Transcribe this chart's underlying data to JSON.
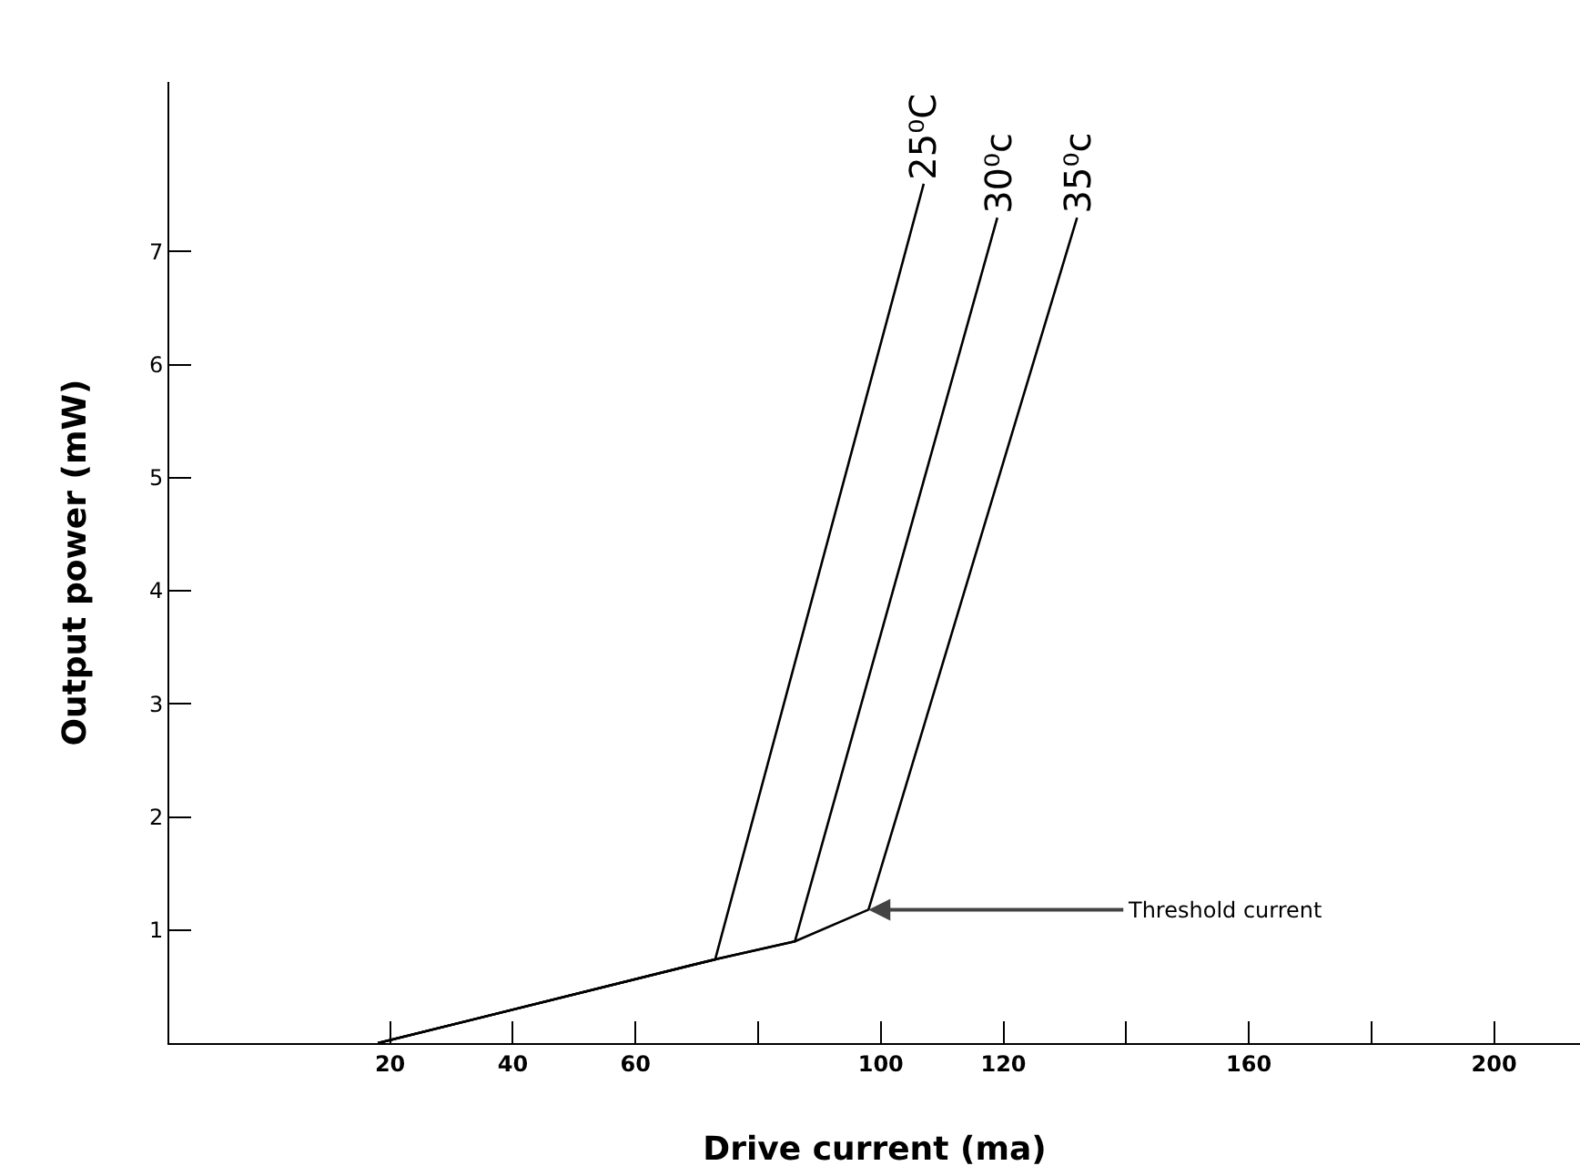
{
  "chart_data": {
    "type": "line",
    "xlabel": "Drive current (ma)",
    "ylabel": "Output power (mW)",
    "series": [
      {
        "name": "25⁰C",
        "color": "#000000",
        "x": [
          18,
          73,
          107
        ],
        "values": [
          0,
          0.74,
          7.6
        ]
      },
      {
        "name": "30⁰c",
        "color": "#000000",
        "x": [
          18,
          73,
          86,
          119
        ],
        "values": [
          0,
          0.74,
          0.9,
          7.3
        ]
      },
      {
        "name": "35⁰c",
        "color": "#000000",
        "x": [
          18,
          73,
          86,
          98,
          132
        ],
        "values": [
          0,
          0.74,
          0.9,
          1.18,
          7.3
        ]
      }
    ],
    "xlim": [
      -16,
      214
    ],
    "ylim": [
      0,
      8.5
    ],
    "xticks": [
      20,
      40,
      60,
      {
        "value": 80,
        "label": null
      },
      100,
      120,
      {
        "value": 140,
        "label": null
      },
      160,
      {
        "value": 180,
        "label": null
      },
      200
    ],
    "yticks": [
      1,
      2,
      3,
      4,
      5,
      6,
      7
    ],
    "annotations": [
      {
        "text": "Threshold current",
        "x": 98,
        "y": 1.18
      }
    ],
    "grid": false,
    "legend": false,
    "marker": "none",
    "line_style": "solid"
  }
}
